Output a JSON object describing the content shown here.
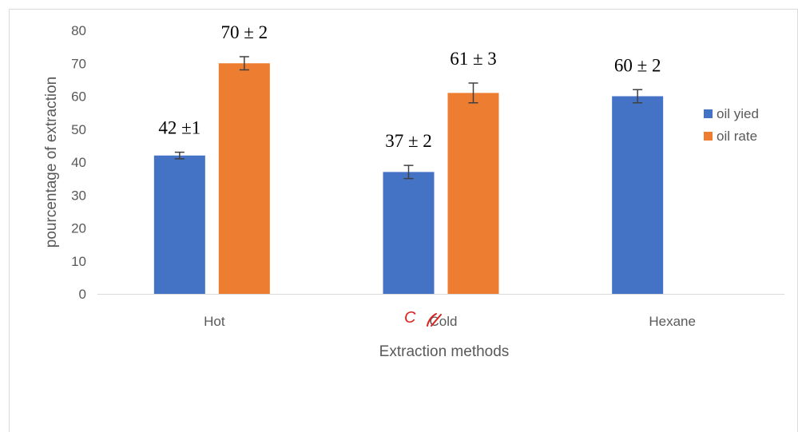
{
  "chart_data": {
    "type": "bar",
    "categories": [
      "Hot",
      "Cold",
      "Hexane"
    ],
    "series": [
      {
        "name": "oil yied",
        "color": "#4472C4",
        "values": [
          42,
          37,
          60
        ],
        "errors": [
          1,
          2,
          2
        ],
        "labels": [
          "42 ±1",
          "37 ± 2",
          "60 ± 2"
        ]
      },
      {
        "name": "oil rate",
        "color": "#ED7D31",
        "values": [
          70,
          61,
          null
        ],
        "errors": [
          2,
          3,
          null
        ],
        "labels": [
          "70 ± 2",
          "61 ± 3",
          ""
        ]
      }
    ],
    "xlabel": "Extraction methods",
    "ylabel": "pourcentage of extraction",
    "ylim": [
      0,
      80
    ],
    "yticks": [
      0,
      10,
      20,
      30,
      40,
      50,
      60,
      70,
      80
    ],
    "grid": false,
    "legend_position": "right",
    "annotation": {
      "text": "C",
      "color": "#E0201E"
    }
  }
}
